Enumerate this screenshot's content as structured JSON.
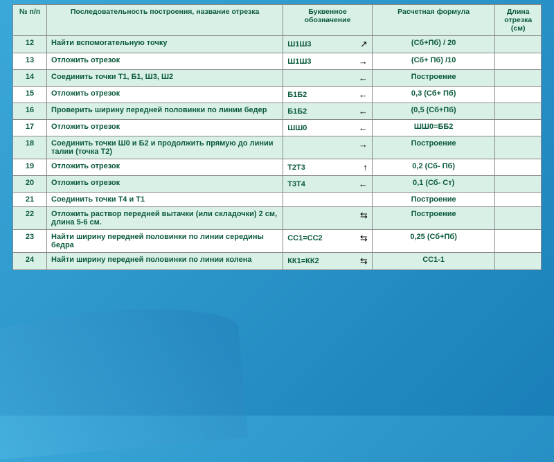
{
  "headers": {
    "num": "№ п/п",
    "desc": "Последовательность построения,\nназвание отрезка",
    "letter": "Буквенное обозначение",
    "formula": "Расчетная формула",
    "length": "Длина отрезка (см)"
  },
  "rows": [
    {
      "n": "12",
      "desc": "Найти вспомогательную точку",
      "let": "Ш1Ш3",
      "arrow": "↗",
      "form": "(Сб+Пб) / 20",
      "len": ""
    },
    {
      "n": "13",
      "desc": "Отложить отрезок",
      "let": "Ш1Ш3",
      "arrow": "→",
      "form": "(Сб+ Пб) /10",
      "len": ""
    },
    {
      "n": "14",
      "desc": "Соединить точки Т1, Б1, Ш3, Ш2",
      "let": "",
      "arrow": "←",
      "form": "Построение",
      "len": ""
    },
    {
      "n": "15",
      "desc": "Отложить отрезок",
      "let": "Б1Б2",
      "arrow": "←",
      "form": "0,3 (Сб+ Пб)",
      "len": ""
    },
    {
      "n": "16",
      "desc": "Проверить ширину передней половинки по линии бедер",
      "let": "Б1Б2",
      "arrow": "←",
      "form": "(0,5 (Сб+Пб)",
      "len": ""
    },
    {
      "n": "17",
      "desc": "Отложить отрезок",
      "let": "ШШ0",
      "arrow": "←",
      "form": "ШШ0=ББ2",
      "len": ""
    },
    {
      "n": "18",
      "desc": "Соединить точки Ш0 и Б2 и продолжить прямую до линии талии (точка Т2)",
      "let": "",
      "arrow": "→",
      "form": "Построение",
      "len": ""
    },
    {
      "n": "19",
      "desc": "Отложить отрезок",
      "let": "Т2Т3",
      "arrow": "↑",
      "form": "0,2 (Сб- Пб)",
      "len": ""
    },
    {
      "n": "20",
      "desc": "Отложить отрезок",
      "let": "Т3Т4",
      "arrow": "←",
      "form": "0,1 (Сб- Ст)",
      "len": ""
    },
    {
      "n": "21",
      "desc": "Соединить точки Т4 и Т1",
      "let": "",
      "arrow": "",
      "form": "Построение",
      "len": ""
    },
    {
      "n": "22",
      "desc": "Отложить раствор передней вытачки (или складочки)  2 см,  длина  5-6 см.",
      "let": "",
      "arrow": "⇆",
      "form": "Построение",
      "len": ""
    },
    {
      "n": "23",
      "desc": "Найти ширину передней половинки по линии середины бедра",
      "let": "СС1=СС2",
      "arrow": "⇆",
      "form": "0,25 (Сб+Пб)",
      "len": ""
    },
    {
      "n": "24",
      "desc": "Найти ширину передней половинки по линии колена",
      "let": "КК1=КК2",
      "arrow": "⇆",
      "form": "СС1-1",
      "len": ""
    }
  ]
}
